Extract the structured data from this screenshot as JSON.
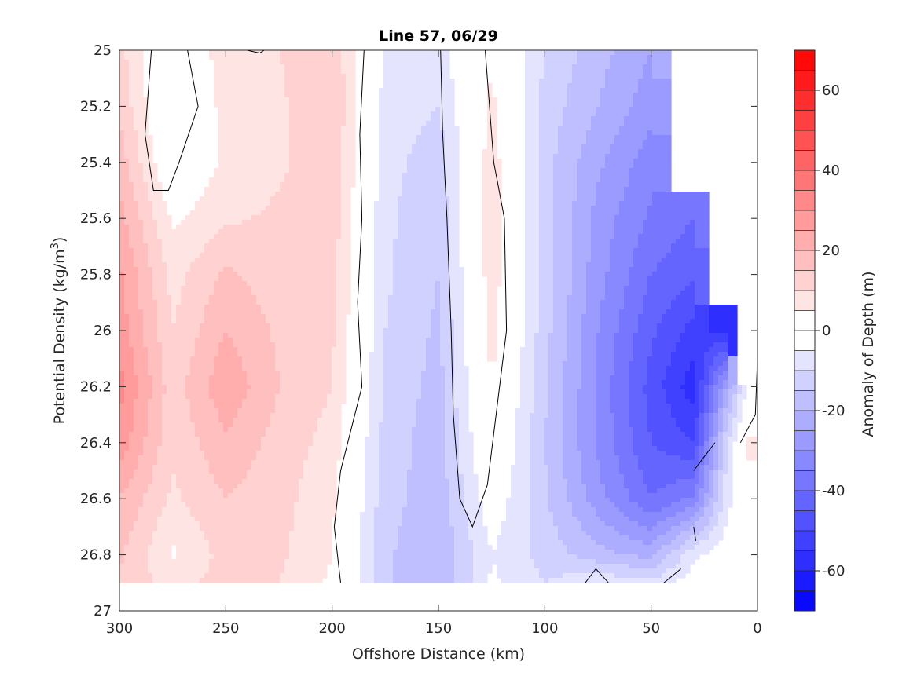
{
  "chart_data": {
    "type": "heatmap",
    "title": "Line 57, 06/29",
    "xlabel": "Offshore Distance (km)",
    "ylabel_main": "Potential Density (kg/m",
    "ylabel_sup": "3",
    "ylabel_close": ")",
    "xlim": [
      300,
      0
    ],
    "ylim": [
      25,
      27
    ],
    "x_reversed": true,
    "y_reversed": true,
    "x_ticks": [
      300,
      250,
      200,
      150,
      100,
      50,
      0
    ],
    "x_tick_labels": [
      "300",
      "250",
      "200",
      "150",
      "100",
      "50",
      "0"
    ],
    "y_ticks": [
      25,
      25.2,
      25.4,
      25.6,
      25.8,
      26,
      26.2,
      26.4,
      26.6,
      26.8,
      27
    ],
    "y_tick_labels": [
      "25",
      "25.2",
      "25.4",
      "25.6",
      "25.8",
      "26",
      "26.2",
      "26.4",
      "26.6",
      "26.8",
      "27"
    ],
    "colorbar": {
      "label": "Anomaly of Depth (m)",
      "limits": [
        -70,
        70
      ],
      "step": 5,
      "ticks": [
        60,
        40,
        20,
        0,
        -20,
        -40,
        -60
      ],
      "tick_labels": [
        "60",
        "40",
        "20",
        "0",
        "-20",
        "-40",
        "-60"
      ],
      "low_color": "#0000ff",
      "mid_color": "#ffffff",
      "high_color": "#ff0000"
    },
    "grid": false,
    "x": [
      300,
      275,
      250,
      225,
      200,
      175,
      150,
      125,
      100,
      75,
      50,
      30,
      15,
      5
    ],
    "y": [
      25.0,
      25.2,
      25.4,
      25.6,
      25.8,
      26.0,
      26.2,
      26.4,
      26.6,
      26.8,
      26.9
    ],
    "values": [
      [
        12,
        -5,
        9,
        10,
        14,
        -6,
        -7,
        5,
        -10,
        -18,
        -25,
        null,
        null,
        null
      ],
      [
        14,
        -4,
        7,
        9,
        15,
        -7,
        -10,
        6,
        -12,
        -20,
        -28,
        null,
        null,
        null
      ],
      [
        18,
        -2,
        6,
        9,
        14,
        -8,
        -13,
        8,
        -13,
        -24,
        -33,
        null,
        null,
        null
      ],
      [
        22,
        4,
        9,
        11,
        13,
        -9,
        -14,
        9,
        -12,
        -27,
        -36,
        -40,
        null,
        null
      ],
      [
        26,
        8,
        16,
        12,
        12,
        -9,
        -15,
        8,
        -12,
        -28,
        -40,
        -44,
        null,
        null
      ],
      [
        28,
        10,
        20,
        14,
        11,
        -10,
        -16,
        7,
        -13,
        -30,
        -44,
        -52,
        -56,
        null
      ],
      [
        32,
        12,
        24,
        15,
        10,
        -11,
        -17,
        5,
        -14,
        -31,
        -47,
        -58,
        -25,
        -5
      ],
      [
        28,
        11,
        19,
        13,
        8,
        -12,
        -18,
        3,
        -15,
        -31,
        -45,
        -50,
        -12,
        6
      ],
      [
        20,
        9,
        15,
        12,
        6,
        -13,
        -18,
        -1,
        -14,
        -28,
        -40,
        -34,
        -8,
        3
      ],
      [
        16,
        4,
        12,
        11,
        5,
        -14,
        -20,
        -5,
        -12,
        -18,
        -22,
        -6,
        -2,
        -1
      ],
      [
        14,
        8,
        12,
        10,
        4,
        -14,
        -20,
        -4,
        -10,
        -6,
        -8,
        -2,
        -1,
        0
      ]
    ],
    "zero_contours": [
      [
        [
          285,
          25.0
        ],
        [
          288,
          25.3
        ],
        [
          284,
          25.5
        ],
        [
          277,
          25.5
        ],
        [
          272,
          25.4
        ],
        [
          263,
          25.2
        ],
        [
          268,
          25.0
        ]
      ],
      [
        [
          185,
          25.0
        ],
        [
          187,
          25.3
        ],
        [
          186,
          25.6
        ],
        [
          188,
          25.9
        ],
        [
          186,
          26.2
        ],
        [
          196,
          26.5
        ],
        [
          199,
          26.7
        ],
        [
          196,
          26.9
        ]
      ],
      [
        [
          149,
          25.0
        ],
        [
          148,
          25.3
        ],
        [
          146,
          25.6
        ],
        [
          144,
          26.0
        ],
        [
          143,
          26.3
        ],
        [
          140,
          26.6
        ],
        [
          134,
          26.7
        ],
        [
          127,
          26.55
        ],
        [
          118,
          26.0
        ],
        [
          119,
          25.6
        ],
        [
          124,
          25.4
        ],
        [
          128,
          25.0
        ]
      ],
      [
        [
          8,
          26.4
        ],
        [
          1,
          26.3
        ],
        [
          0,
          26.1
        ]
      ],
      [
        [
          30,
          26.5
        ],
        [
          25,
          26.45
        ],
        [
          20,
          26.4
        ]
      ],
      [
        [
          29,
          26.75
        ],
        [
          30,
          26.7
        ]
      ],
      [
        [
          81,
          26.9
        ],
        [
          76,
          26.85
        ],
        [
          70,
          26.9
        ]
      ],
      [
        [
          44,
          26.9
        ],
        [
          36,
          26.85
        ]
      ],
      [
        [
          240,
          25.0
        ],
        [
          234,
          25.01
        ],
        [
          232,
          25.0
        ]
      ]
    ]
  }
}
